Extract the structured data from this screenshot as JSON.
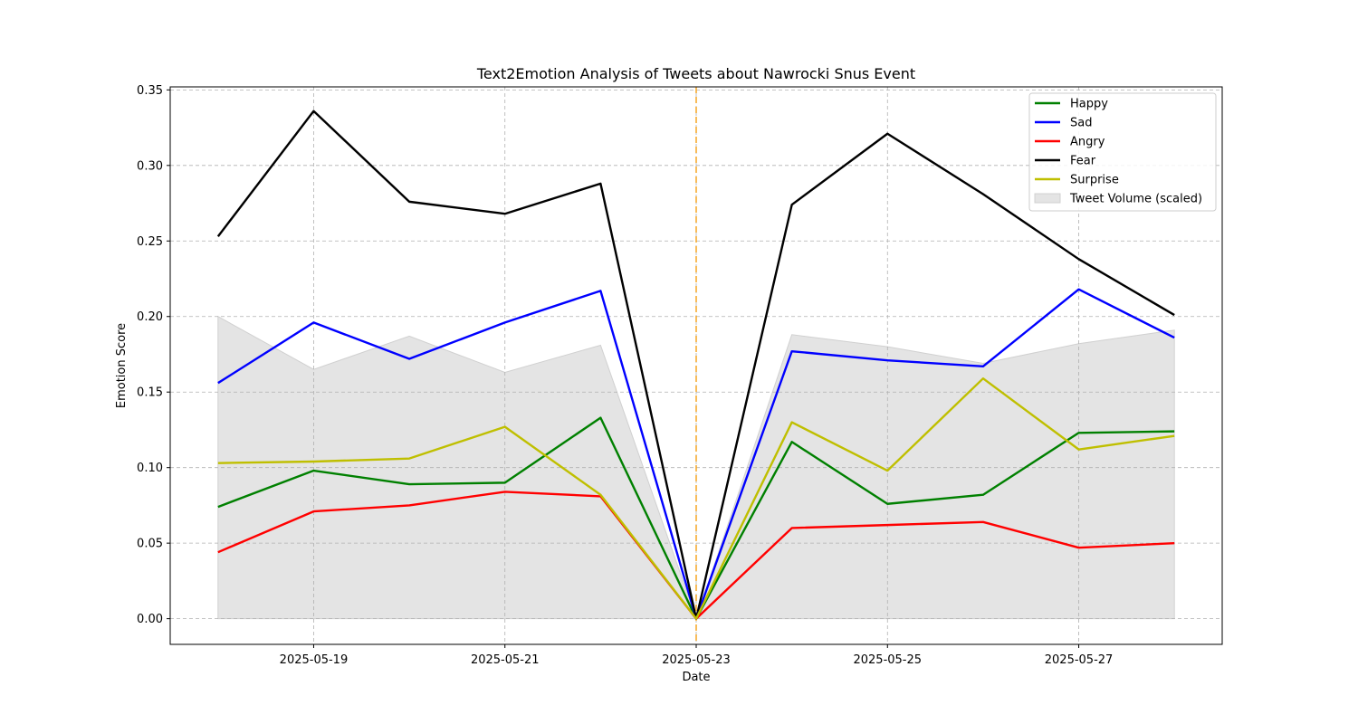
{
  "chart_data": {
    "type": "line",
    "title": "Text2Emotion Analysis of Tweets about Nawrocki Snus Event",
    "xlabel": "Date",
    "ylabel": "Emotion Score",
    "x": [
      "2025-05-18",
      "2025-05-19",
      "2025-05-20",
      "2025-05-21",
      "2025-05-22",
      "2025-05-23",
      "2025-05-24",
      "2025-05-25",
      "2025-05-26",
      "2025-05-27",
      "2025-05-28"
    ],
    "x_tick_labels": [
      "2025-05-19",
      "2025-05-21",
      "2025-05-23",
      "2025-05-25",
      "2025-05-27"
    ],
    "xlim": [
      "2025-05-17.5",
      "2025-05-28.5"
    ],
    "ylim": [
      -0.017,
      0.352
    ],
    "y_ticks": [
      0.0,
      0.05,
      0.1,
      0.15,
      0.2,
      0.25,
      0.3,
      0.35
    ],
    "y_tick_labels": [
      "0.00",
      "0.05",
      "0.10",
      "0.15",
      "0.20",
      "0.25",
      "0.30",
      "0.35"
    ],
    "grid": true,
    "legend_position": "top-right",
    "event_marker": {
      "x": "2025-05-23",
      "color": "#f5a623",
      "style": "dashed"
    },
    "series": [
      {
        "name": "Happy",
        "color": "#008000",
        "values": [
          0.074,
          0.098,
          0.089,
          0.09,
          0.133,
          0.0,
          0.117,
          0.076,
          0.082,
          0.123,
          0.124
        ]
      },
      {
        "name": "Sad",
        "color": "#0000ff",
        "values": [
          0.156,
          0.196,
          0.172,
          0.196,
          0.217,
          0.0,
          0.177,
          0.171,
          0.167,
          0.218,
          0.186
        ]
      },
      {
        "name": "Angry",
        "color": "#ff0000",
        "values": [
          0.044,
          0.071,
          0.075,
          0.084,
          0.081,
          0.0,
          0.06,
          0.062,
          0.064,
          0.047,
          0.05
        ]
      },
      {
        "name": "Fear",
        "color": "#000000",
        "values": [
          0.253,
          0.336,
          0.276,
          0.268,
          0.288,
          0.0,
          0.274,
          0.321,
          0.281,
          0.238,
          0.201
        ]
      },
      {
        "name": "Surprise",
        "color": "#bfbf00",
        "values": [
          0.103,
          0.104,
          0.106,
          0.127,
          0.082,
          0.0,
          0.13,
          0.098,
          0.159,
          0.112,
          0.121
        ]
      }
    ],
    "area": {
      "name": "Tweet Volume (scaled)",
      "color": "#e4e4e4",
      "values": [
        0.2,
        0.165,
        0.187,
        0.163,
        0.181,
        0.0,
        0.188,
        0.18,
        0.169,
        0.182,
        0.191
      ]
    }
  }
}
